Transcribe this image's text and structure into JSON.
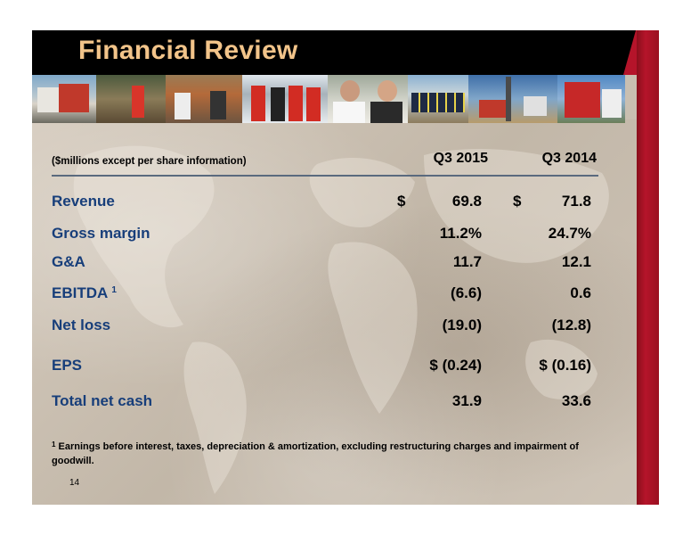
{
  "title": "Financial Review",
  "table": {
    "header_note": "($millions except per share information)",
    "columns": [
      "Q3 2015",
      "Q3 2014"
    ],
    "rows": [
      {
        "label": "Revenue",
        "sup": "",
        "currency": "$",
        "q3_2015": "69.8",
        "q3_2014": "71.8"
      },
      {
        "label": "Gross margin",
        "sup": "",
        "currency": "",
        "q3_2015": "11.2%",
        "q3_2014": "24.7%"
      },
      {
        "label": "G&A",
        "sup": "",
        "currency": "",
        "q3_2015": "11.7",
        "q3_2014": "12.1"
      },
      {
        "label": "EBITDA",
        "sup": "1",
        "currency": "",
        "q3_2015": "(6.6)",
        "q3_2014": "0.6"
      },
      {
        "label": "Net loss",
        "sup": "",
        "currency": "",
        "q3_2015": "(19.0)",
        "q3_2014": "(12.8)"
      },
      {
        "label": "EPS",
        "sup": "",
        "currency": "",
        "q3_2015": "$ (0.24)",
        "q3_2014": "$ (0.16)"
      },
      {
        "label": "Total net cash",
        "sup": "",
        "currency": "",
        "q3_2015": "31.9",
        "q3_2014": "33.6"
      }
    ]
  },
  "footnote": {
    "marker": "1",
    "text": "Earnings before interest, taxes, depreciation & amortization, excluding restructuring charges and impairment of goodwill."
  },
  "page_number": "14",
  "colors": {
    "title": "#f2c48a",
    "label": "#173e7a",
    "accent_red": "#b5142a",
    "title_bar": "#000000"
  }
}
